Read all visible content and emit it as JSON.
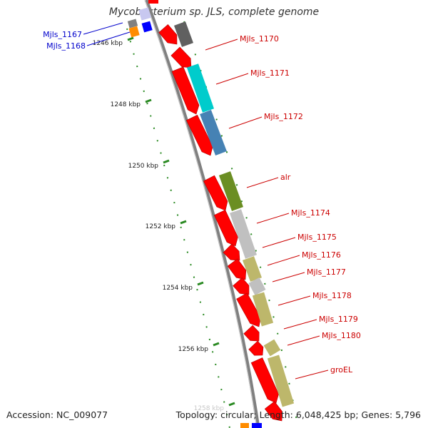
{
  "title": "Mycobacterium sp. JLS, complete genome",
  "footer": {
    "accession": "Accession: NC_009077",
    "stats": "Topology: circular; Length: 6,048,425 bp; Genes: 5,796"
  },
  "colors": {
    "backbone": "#808080",
    "cds_forward": "#ff0000",
    "tick": "#2a8a22",
    "label_red": "#cc0000",
    "label_blue": "#0000cc"
  },
  "axis": {
    "ticks": [
      {
        "label": "1246 kbp",
        "pos": 1246
      },
      {
        "label": "1248 kbp",
        "pos": 1248
      },
      {
        "label": "1250 kbp",
        "pos": 1250
      },
      {
        "label": "1252 kbp",
        "pos": 1252
      },
      {
        "label": "1254 kbp",
        "pos": 1254
      },
      {
        "label": "1256 kbp",
        "pos": 1256
      },
      {
        "label": "1258 kbp",
        "pos": 1258
      }
    ]
  },
  "genes": [
    {
      "name": "Mjls_1167",
      "color": "#0000cc"
    },
    {
      "name": "Mjls_1168",
      "color": "#0000cc"
    },
    {
      "name": "Mjls_1170",
      "color": "#cc0000"
    },
    {
      "name": "Mjls_1171",
      "color": "#cc0000"
    },
    {
      "name": "Mjls_1172",
      "color": "#cc0000"
    },
    {
      "name": "alr",
      "color": "#cc0000"
    },
    {
      "name": "Mjls_1174",
      "color": "#cc0000"
    },
    {
      "name": "Mjls_1175",
      "color": "#cc0000"
    },
    {
      "name": "Mjls_1176",
      "color": "#cc0000"
    },
    {
      "name": "Mjls_1177",
      "color": "#cc0000"
    },
    {
      "name": "Mjls_1178",
      "color": "#cc0000"
    },
    {
      "name": "Mjls_1179",
      "color": "#cc0000"
    },
    {
      "name": "Mjls_1180",
      "color": "#cc0000"
    },
    {
      "name": "groEL",
      "color": "#cc0000"
    }
  ],
  "category_colors": [
    "#606060",
    "#00cccc",
    "#4682b4",
    "#6b8e23",
    "#c0c0c0",
    "#bdb76b",
    "#ff8c00",
    "#0000ff"
  ]
}
